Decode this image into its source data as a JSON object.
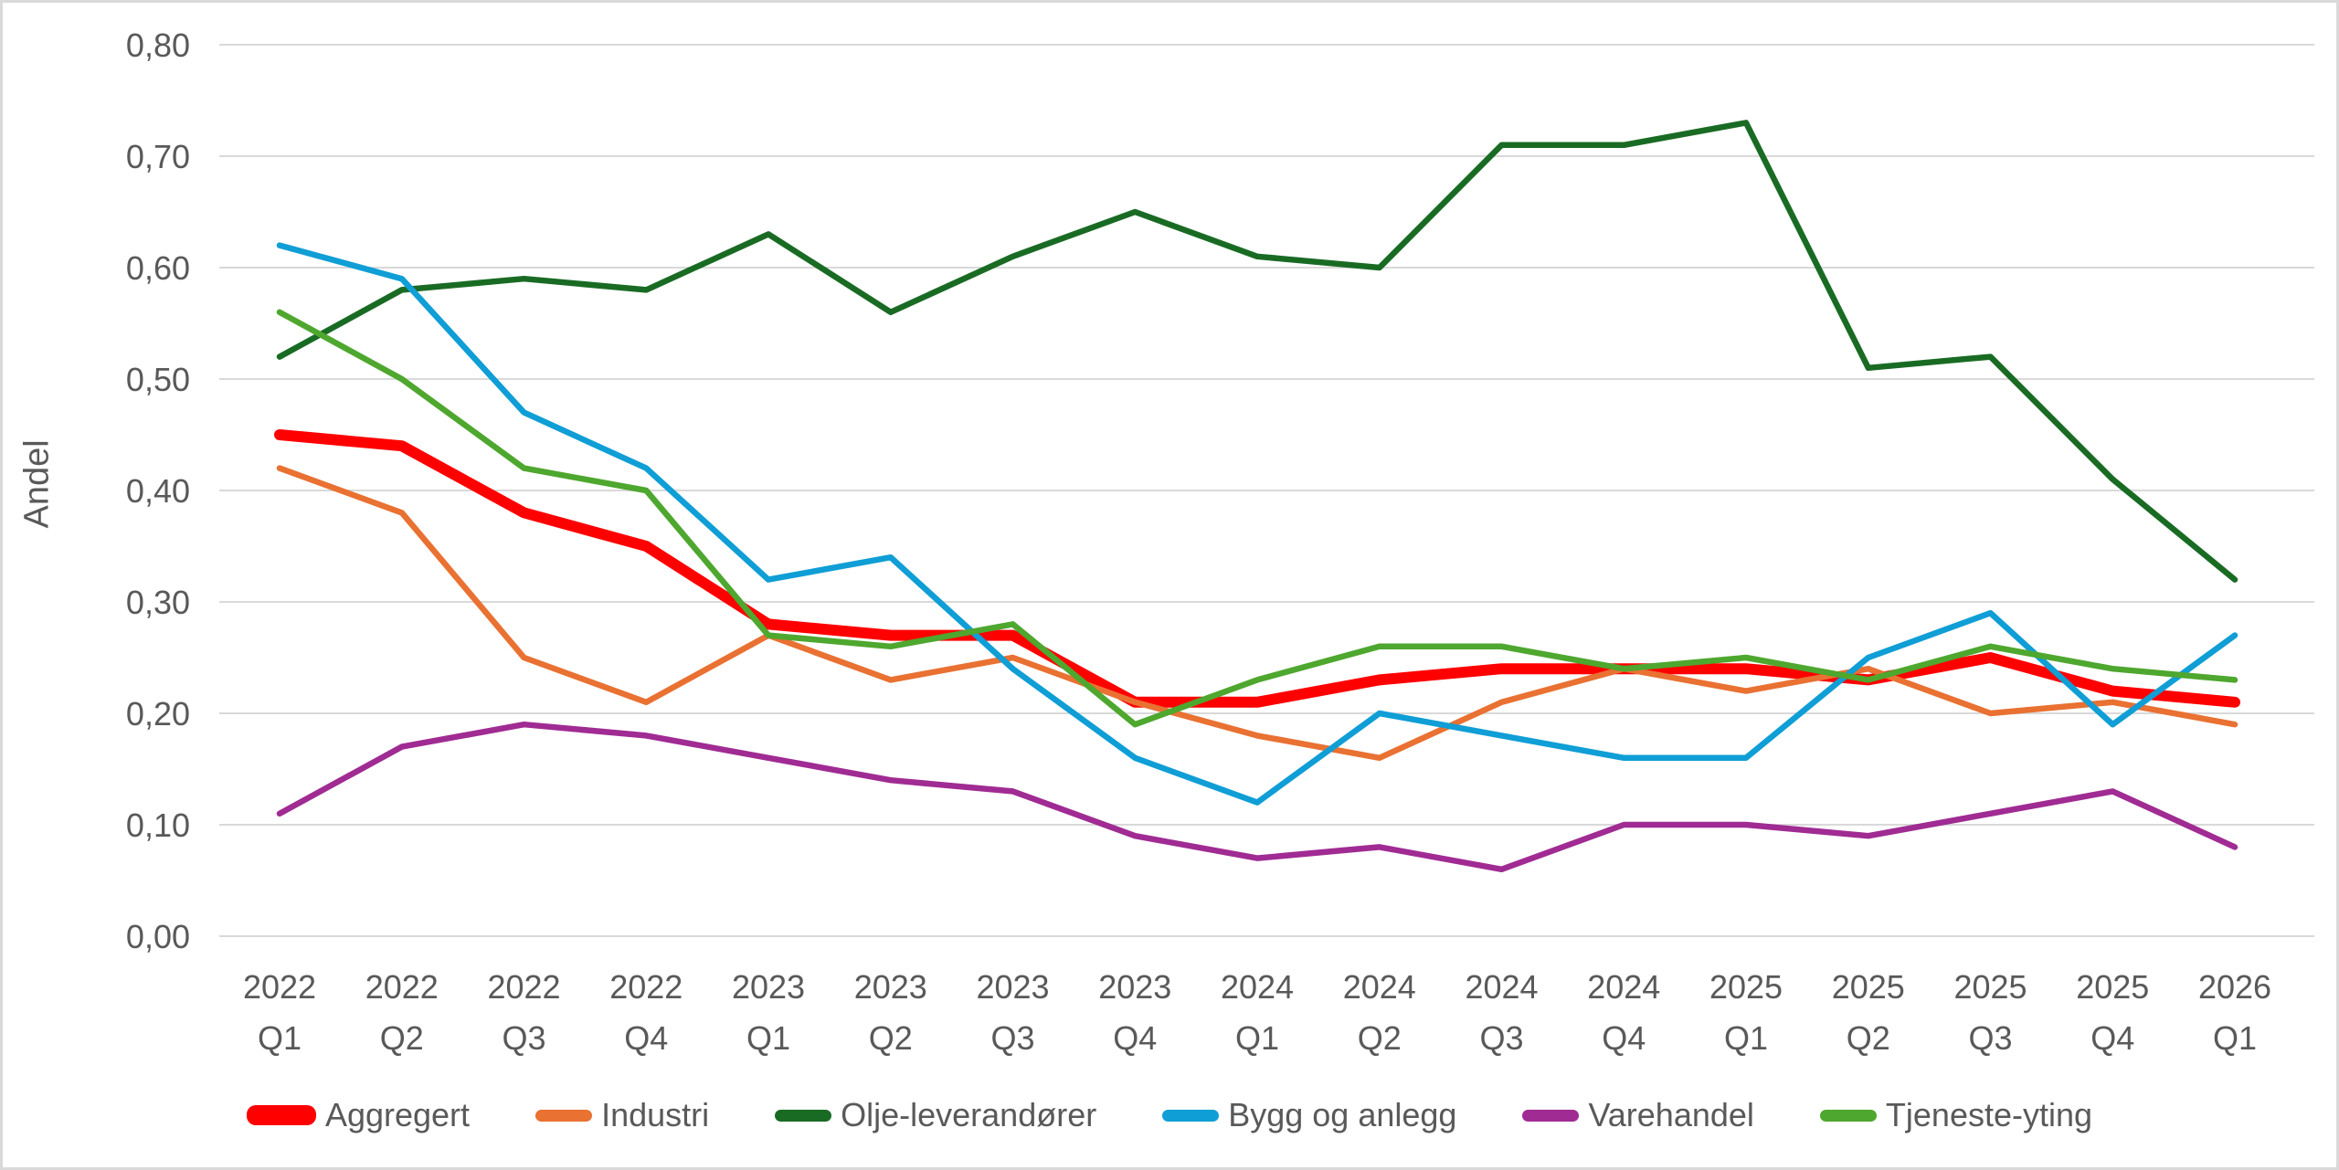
{
  "chart_data": {
    "type": "line",
    "title": "",
    "xlabel": "",
    "ylabel": "Andel",
    "ylim": [
      0,
      0.8
    ],
    "grid": "horizontal",
    "legend_position": "bottom",
    "y_tick_labels": [
      "0,00",
      "0,10",
      "0,20",
      "0,30",
      "0,40",
      "0,50",
      "0,60",
      "0,70",
      "0,80"
    ],
    "y_tick_values": [
      0.0,
      0.1,
      0.2,
      0.3,
      0.4,
      0.5,
      0.6,
      0.7,
      0.8
    ],
    "categories": [
      {
        "year": "2022",
        "quarter": "Q1"
      },
      {
        "year": "2022",
        "quarter": "Q2"
      },
      {
        "year": "2022",
        "quarter": "Q3"
      },
      {
        "year": "2022",
        "quarter": "Q4"
      },
      {
        "year": "2023",
        "quarter": "Q1"
      },
      {
        "year": "2023",
        "quarter": "Q2"
      },
      {
        "year": "2023",
        "quarter": "Q3"
      },
      {
        "year": "2023",
        "quarter": "Q4"
      },
      {
        "year": "2024",
        "quarter": "Q1"
      },
      {
        "year": "2024",
        "quarter": "Q2"
      },
      {
        "year": "2024",
        "quarter": "Q3"
      },
      {
        "year": "2024",
        "quarter": "Q4"
      },
      {
        "year": "2025",
        "quarter": "Q1"
      },
      {
        "year": "2025",
        "quarter": "Q2"
      },
      {
        "year": "2025",
        "quarter": "Q3"
      },
      {
        "year": "2025",
        "quarter": "Q4"
      },
      {
        "year": "2026",
        "quarter": "Q1"
      }
    ],
    "series": [
      {
        "name": "Aggregert",
        "color": "#FF0000",
        "emphasis": true,
        "values": [
          0.45,
          0.44,
          0.38,
          0.35,
          0.28,
          0.27,
          0.27,
          0.21,
          0.21,
          0.23,
          0.24,
          0.24,
          0.24,
          0.23,
          0.25,
          0.22,
          0.21
        ]
      },
      {
        "name": "Industri",
        "color": "#E97132",
        "emphasis": false,
        "values": [
          0.42,
          0.38,
          0.25,
          0.21,
          0.27,
          0.23,
          0.25,
          0.21,
          0.18,
          0.16,
          0.21,
          0.24,
          0.22,
          0.24,
          0.2,
          0.21,
          0.19
        ]
      },
      {
        "name": "Olje-leverandører",
        "color": "#196B24",
        "emphasis": false,
        "values": [
          0.52,
          0.58,
          0.59,
          0.58,
          0.63,
          0.56,
          0.61,
          0.65,
          0.61,
          0.6,
          0.71,
          0.71,
          0.73,
          0.51,
          0.52,
          0.41,
          0.32
        ]
      },
      {
        "name": "Bygg og anlegg",
        "color": "#0F9ED5",
        "emphasis": false,
        "values": [
          0.62,
          0.59,
          0.47,
          0.42,
          0.32,
          0.34,
          0.24,
          0.16,
          0.12,
          0.2,
          0.18,
          0.16,
          0.16,
          0.25,
          0.29,
          0.19,
          0.27
        ]
      },
      {
        "name": "Varehandel",
        "color": "#A02B93",
        "emphasis": false,
        "values": [
          0.11,
          0.17,
          0.19,
          0.18,
          0.16,
          0.14,
          0.13,
          0.09,
          0.07,
          0.08,
          0.06,
          0.1,
          0.1,
          0.09,
          0.11,
          0.13,
          0.08
        ]
      },
      {
        "name": "Tjeneste-yting",
        "color": "#4EA72E",
        "emphasis": false,
        "values": [
          0.56,
          0.5,
          0.42,
          0.4,
          0.27,
          0.26,
          0.28,
          0.19,
          0.23,
          0.26,
          0.26,
          0.24,
          0.25,
          0.23,
          0.26,
          0.24,
          0.23
        ]
      }
    ]
  },
  "layout_colors": {
    "gridline": "#d9d9d9",
    "axis_text": "#595959",
    "frame_border": "#d9d9d9",
    "background": "#ffffff"
  }
}
